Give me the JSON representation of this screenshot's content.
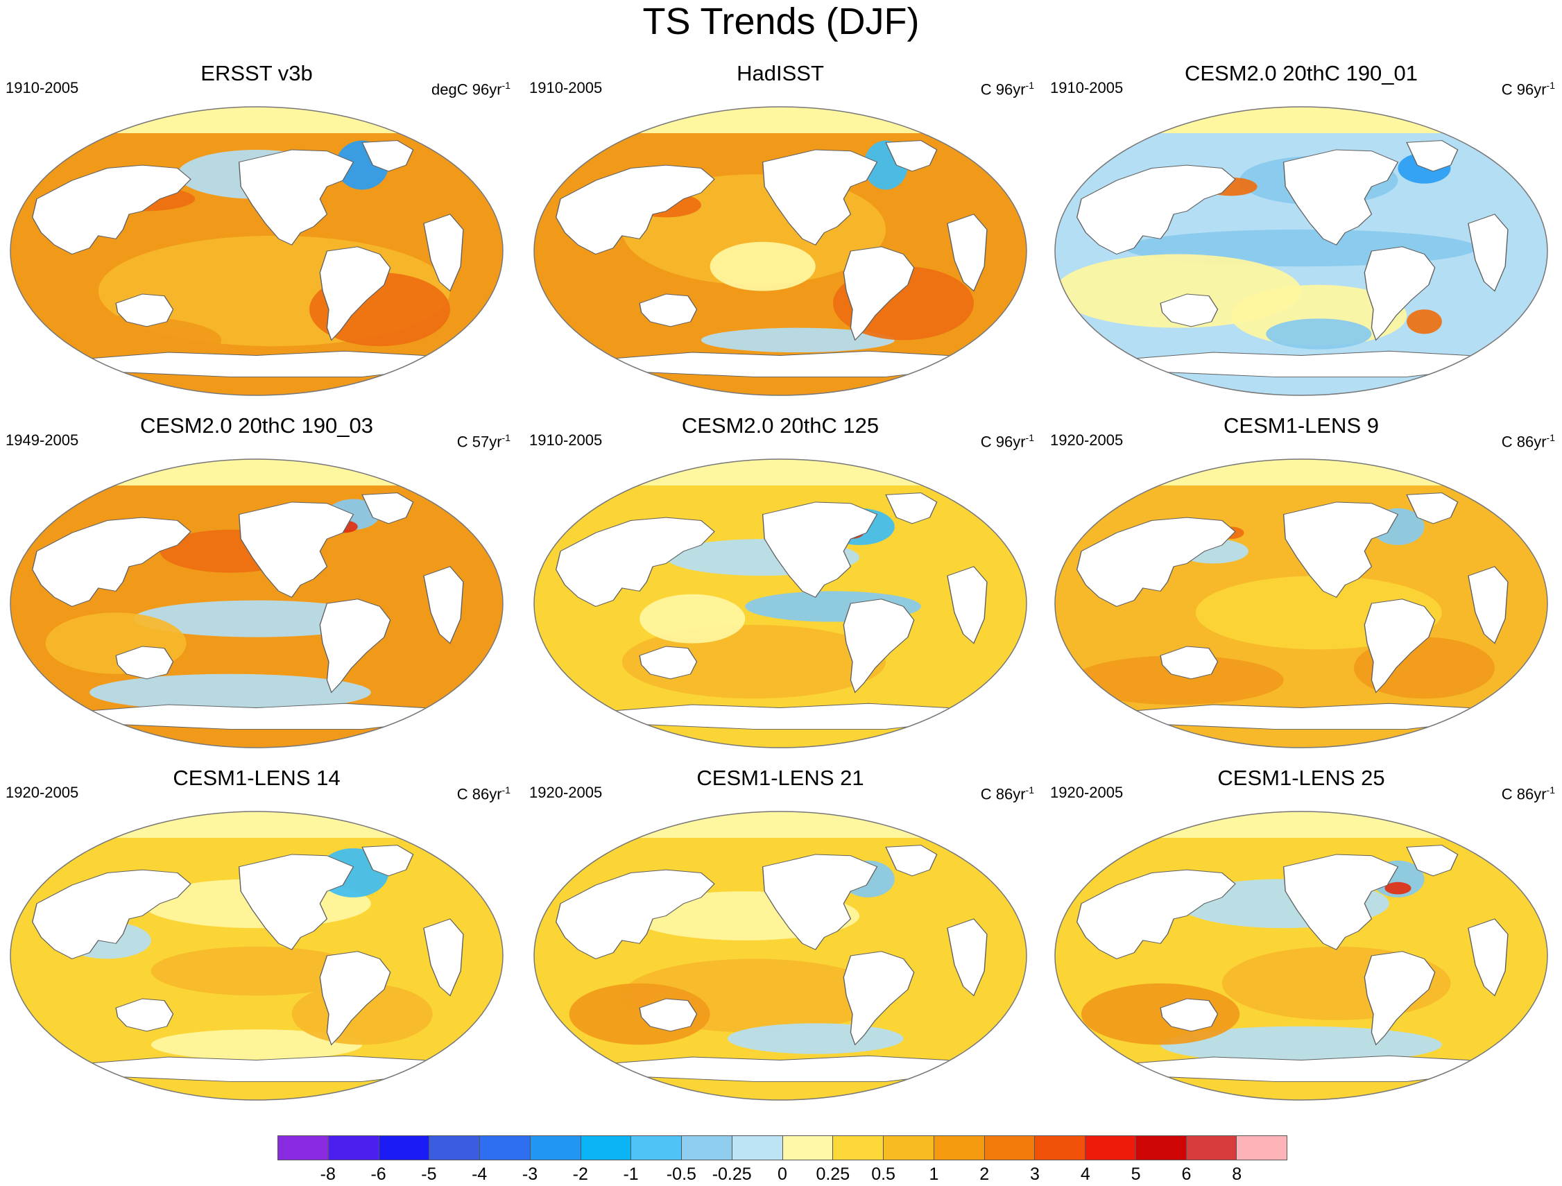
{
  "title": "TS Trends (DJF)",
  "palette": {
    "white": "#ffffff",
    "land": "#ffffff",
    "coast": "#606060",
    "lightyellow": "#fff6a0",
    "yellow": "#fbd535",
    "gold": "#f7b82a",
    "orange": "#f19a1a",
    "darkorange": "#ee6f10",
    "red": "#e13010",
    "lightblue": "#b4def3",
    "blue1": "#87c9ee",
    "blue2": "#3fbdf2",
    "blue3": "#2a9df3"
  },
  "panels": [
    {
      "title": "ERSST v3b",
      "period": "1910-2005",
      "units": "degC 96yr",
      "exponent": "-1",
      "base": "orange"
    },
    {
      "title": "HadISST",
      "period": "1910-2005",
      "units": "C 96yr",
      "exponent": "-1",
      "base": "orange"
    },
    {
      "title": "CESM2.0 20thC 190_01",
      "period": "1910-2005",
      "units": "C 96yr",
      "exponent": "-1",
      "base": "lightblue"
    },
    {
      "title": "CESM2.0 20thC 190_03",
      "period": "1949-2005",
      "units": "C 57yr",
      "exponent": "-1",
      "base": "orange"
    },
    {
      "title": "CESM2.0 20thC 125",
      "period": "1910-2005",
      "units": "C 96yr",
      "exponent": "-1",
      "base": "yellow"
    },
    {
      "title": "CESM1-LENS 9",
      "period": "1920-2005",
      "units": "C 86yr",
      "exponent": "-1",
      "base": "gold"
    },
    {
      "title": "CESM1-LENS 14",
      "period": "1920-2005",
      "units": "C 86yr",
      "exponent": "-1",
      "base": "yellow"
    },
    {
      "title": "CESM1-LENS 21",
      "period": "1920-2005",
      "units": "C 86yr",
      "exponent": "-1",
      "base": "yellow"
    },
    {
      "title": "CESM1-LENS 25",
      "period": "1920-2005",
      "units": "C 86yr",
      "exponent": "-1",
      "base": "yellow"
    }
  ],
  "colorbar": {
    "colors": [
      "#8a2be2",
      "#4b1ff0",
      "#1b1bf5",
      "#3a5ce0",
      "#2e6ff2",
      "#2196f3",
      "#0ab4f5",
      "#4fc3f7",
      "#8fcdef",
      "#bde3f5",
      "#fff8a8",
      "#fcd838",
      "#f7bc22",
      "#f59a0f",
      "#f37a0c",
      "#f2510a",
      "#f01a0a",
      "#cf0505",
      "#d83c3c",
      "#fdb3b8"
    ],
    "labels": [
      "-8",
      "-6",
      "-5",
      "-4",
      "-3",
      "-2",
      "-1",
      "-0.5",
      "-0.25",
      "0",
      "0.25",
      "0.5",
      "1",
      "2",
      "3",
      "4",
      "5",
      "6",
      "8"
    ]
  }
}
